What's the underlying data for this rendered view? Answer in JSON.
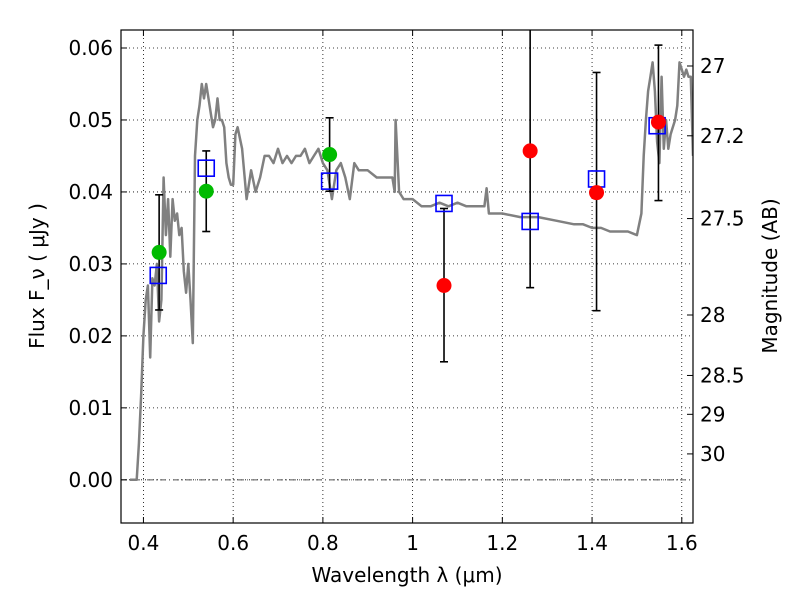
{
  "chart_data": {
    "type": "scatter",
    "xlabel": "Wavelength  λ (μm)",
    "ylabel": "Flux  F_ν  ( μJy )",
    "ylabel_right": "Magnitude (AB)",
    "xlim": [
      0.35,
      1.625
    ],
    "ylim": [
      -0.006,
      0.0625
    ],
    "grid": true,
    "x_ticks": [
      0.4,
      0.6,
      0.8,
      1.0,
      1.2,
      1.4,
      1.6
    ],
    "x_tick_labels": [
      "0.4",
      "0.6",
      "0.8",
      "1",
      "1.2",
      "1.4",
      "1.6"
    ],
    "y_ticks": [
      0.0,
      0.01,
      0.02,
      0.03,
      0.04,
      0.05,
      0.06
    ],
    "y_tick_labels": [
      "0.00",
      "0.01",
      "0.02",
      "0.03",
      "0.04",
      "0.05",
      "0.06"
    ],
    "mag_ticks": [
      {
        "label": "27",
        "flux": 0.0575
      },
      {
        "label": "27.2",
        "flux": 0.0478
      },
      {
        "label": "27.5",
        "flux": 0.0363
      },
      {
        "label": "28",
        "flux": 0.0229
      },
      {
        "label": "28.5",
        "flux": 0.0145
      },
      {
        "label": "29",
        "flux": 0.0091
      },
      {
        "label": "30",
        "flux": 0.0036
      }
    ],
    "zero_line": 0.0,
    "series": [
      {
        "kind": "line",
        "color": "#808080",
        "x": [
          0.37,
          0.385,
          0.39,
          0.395,
          0.4,
          0.405,
          0.41,
          0.415,
          0.42,
          0.425,
          0.43,
          0.435,
          0.44,
          0.445,
          0.45,
          0.455,
          0.46,
          0.465,
          0.47,
          0.475,
          0.48,
          0.485,
          0.49,
          0.495,
          0.5,
          0.505,
          0.51,
          0.515,
          0.52,
          0.525,
          0.53,
          0.535,
          0.54,
          0.545,
          0.55,
          0.555,
          0.56,
          0.565,
          0.57,
          0.575,
          0.58,
          0.585,
          0.59,
          0.595,
          0.6,
          0.605,
          0.61,
          0.62,
          0.63,
          0.64,
          0.65,
          0.66,
          0.67,
          0.68,
          0.69,
          0.7,
          0.71,
          0.72,
          0.73,
          0.74,
          0.75,
          0.76,
          0.77,
          0.78,
          0.79,
          0.8,
          0.81,
          0.82,
          0.83,
          0.84,
          0.85,
          0.86,
          0.87,
          0.88,
          0.89,
          0.9,
          0.92,
          0.94,
          0.955,
          0.96,
          0.962,
          0.97,
          0.98,
          1.0,
          1.02,
          1.04,
          1.06,
          1.08,
          1.1,
          1.12,
          1.14,
          1.16,
          1.165,
          1.17,
          1.2,
          1.24,
          1.28,
          1.32,
          1.36,
          1.38,
          1.4,
          1.42,
          1.44,
          1.46,
          1.48,
          1.5,
          1.51,
          1.515,
          1.52,
          1.525,
          1.53,
          1.535,
          1.54,
          1.545,
          1.55,
          1.555,
          1.56,
          1.565,
          1.57,
          1.575,
          1.58,
          1.585,
          1.59,
          1.595,
          1.6,
          1.605,
          1.61,
          1.615,
          1.62,
          1.625
        ],
        "y": [
          0.0,
          0.0,
          0.005,
          0.012,
          0.02,
          0.025,
          0.027,
          0.017,
          0.028,
          0.027,
          0.03,
          0.022,
          0.025,
          0.042,
          0.034,
          0.039,
          0.031,
          0.039,
          0.036,
          0.037,
          0.034,
          0.035,
          0.029,
          0.026,
          0.03,
          0.025,
          0.019,
          0.045,
          0.05,
          0.052,
          0.055,
          0.053,
          0.055,
          0.053,
          0.051,
          0.049,
          0.05,
          0.053,
          0.05,
          0.05,
          0.049,
          0.044,
          0.042,
          0.041,
          0.041,
          0.048,
          0.049,
          0.046,
          0.039,
          0.043,
          0.04,
          0.042,
          0.045,
          0.045,
          0.044,
          0.046,
          0.044,
          0.045,
          0.044,
          0.045,
          0.045,
          0.046,
          0.044,
          0.045,
          0.046,
          0.044,
          0.043,
          0.039,
          0.043,
          0.044,
          0.042,
          0.039,
          0.044,
          0.043,
          0.043,
          0.043,
          0.042,
          0.042,
          0.042,
          0.04,
          0.05,
          0.04,
          0.039,
          0.039,
          0.038,
          0.038,
          0.0385,
          0.038,
          0.0385,
          0.038,
          0.038,
          0.038,
          0.0405,
          0.037,
          0.037,
          0.0365,
          0.0365,
          0.036,
          0.0355,
          0.0355,
          0.035,
          0.035,
          0.0345,
          0.0345,
          0.0345,
          0.034,
          0.037,
          0.045,
          0.05,
          0.054,
          0.056,
          0.058,
          0.054,
          0.047,
          0.044,
          0.056,
          0.046,
          0.05,
          0.046,
          0.048,
          0.049,
          0.05,
          0.052,
          0.058,
          0.057,
          0.056,
          0.057,
          0.056,
          0.056,
          0.045
        ]
      },
      {
        "kind": "open-square",
        "color": "#0000ff",
        "x": [
          0.433,
          0.54,
          0.815,
          1.07,
          1.262,
          1.41,
          1.545
        ],
        "y": [
          0.0284,
          0.0433,
          0.0415,
          0.0384,
          0.0359,
          0.0418,
          0.0492
        ]
      },
      {
        "kind": "filled-circle",
        "color": "#00bb00",
        "x": [
          0.435,
          0.54,
          0.815
        ],
        "y": [
          0.0316,
          0.0401,
          0.0452
        ],
        "err_low": [
          0.0236,
          0.0345,
          0.0401
        ],
        "err_high": [
          0.0396,
          0.0457,
          0.0503
        ]
      },
      {
        "kind": "filled-circle",
        "color": "#ff0000",
        "x": [
          1.07,
          1.262,
          1.41,
          1.548
        ],
        "y": [
          0.027,
          0.0457,
          0.0399,
          0.0497
        ],
        "err_low": [
          0.0164,
          0.0267,
          0.0235,
          0.0388
        ],
        "err_high": [
          0.0377,
          0.0625,
          0.0566,
          0.0604
        ]
      }
    ]
  }
}
